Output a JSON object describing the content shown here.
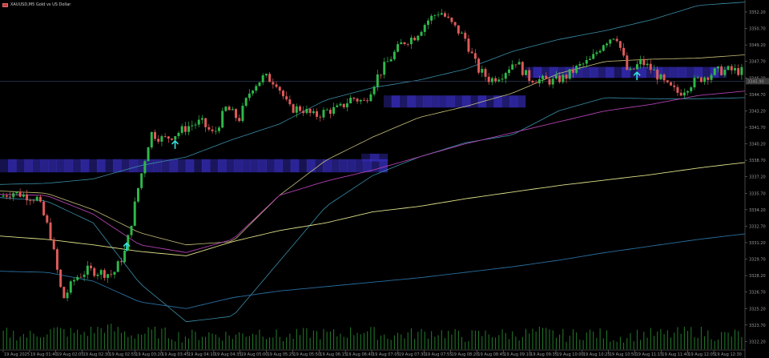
{
  "header": {
    "symbol_text": "XAUUSD,M5 Gold vs US Dollar",
    "icon": "chart-flag-icon"
  },
  "price_axis": {
    "labels": [
      "3352.20",
      "3350.70",
      "3349.20",
      "3347.70",
      "3346.20",
      "3344.70",
      "3343.20",
      "3341.70",
      "3340.20",
      "3338.70",
      "3337.20",
      "3335.70",
      "3334.20",
      "3332.70",
      "3331.20",
      "3329.70",
      "3328.20",
      "3326.70",
      "3325.20",
      "3323.70",
      "3322.20"
    ],
    "current_price": "3345.90",
    "current_price_color": "#3a3a3a"
  },
  "time_axis": {
    "labels": [
      "19 Aug 2025",
      "19 Aug 01:40",
      "19 Aug 02:05",
      "19 Aug 02:30",
      "19 Aug 02:55",
      "19 Aug 03:20",
      "19 Aug 03:45",
      "19 Aug 04:10",
      "19 Aug 04:35",
      "19 Aug 05:00",
      "19 Aug 05:25",
      "19 Aug 05:50",
      "19 Aug 06:15",
      "19 Aug 06:40",
      "19 Aug 07:05",
      "19 Aug 07:30",
      "19 Aug 07:55",
      "19 Aug 08:20",
      "19 Aug 08:45",
      "19 Aug 09:10",
      "19 Aug 09:35",
      "19 Aug 10:00",
      "19 Aug 10:25",
      "19 Aug 10:50",
      "19 Aug 11:15",
      "19 Aug 11:40",
      "19 Aug 12:05",
      "19 Aug 12:30"
    ]
  },
  "chart_data": {
    "type": "candlestick",
    "title": "",
    "ylim": [
      3321.5,
      3353.0
    ],
    "grid": false,
    "colors": {
      "bull": "#2fb84a",
      "bear": "#e05a5a",
      "volume": "#2fa83a",
      "zone": "#3a30c8",
      "upper_band": "#3a8fa8",
      "lower_band": "#3a8fa8",
      "mid_band": "#c8c27a",
      "ma_magenta": "#b040b0",
      "ma_yellow": "#e0e08a",
      "ma_teal": "#2a6fa0",
      "arrow": "#38e0e0",
      "price_line": "#2f3a5a"
    },
    "anchor_prices": [
      3335.4,
      3335.8,
      3335.5,
      3335.2,
      3332.0,
      3326.0,
      3328.0,
      3328.7,
      3328.5,
      3328.3,
      3330.5,
      3336.2,
      3341.2,
      3340.6,
      3341.1,
      3341.8,
      3342.2,
      3341.0,
      3343.5,
      3342.4,
      3345.3,
      3346.3,
      3345.8,
      3343.4,
      3343.4,
      3342.7,
      3343.2,
      3343.4,
      3344.4,
      3344.0,
      3346.3,
      3347.9,
      3349.4,
      3350.0,
      3351.4,
      3352.3,
      3351.0,
      3349.8,
      3347.0,
      3346.0,
      3346.6,
      3347.8,
      3346.2,
      3346.0,
      3345.9,
      3346.3,
      3347.2,
      3347.8,
      3349.4,
      3350.2,
      3346.5,
      3347.7,
      3346.8,
      3345.5,
      3344.8,
      3345.7,
      3346.3,
      3346.8,
      3346.9,
      3346.8
    ],
    "up_arrows_at": [
      0.17,
      0.235,
      0.855
    ],
    "volume_level": [
      0.55,
      0.4,
      0.7,
      0.5,
      0.85,
      0.45,
      0.6,
      0.35,
      0.5,
      0.4,
      0.65,
      0.3,
      0.55,
      0.45,
      0.7,
      0.4,
      0.5,
      0.6,
      0.35,
      0.5,
      0.45,
      0.6,
      0.4,
      0.55,
      0.3,
      0.5,
      0.45,
      0.65,
      0.4,
      0.5
    ],
    "bands": {
      "upper_band": [
        3336.5,
        3336.6,
        3337.0,
        3338.2,
        3339.0,
        3340.6,
        3342.0,
        3344.2,
        3345.3,
        3346.0,
        3347.0,
        3348.6,
        3349.7,
        3350.5,
        3351.5,
        3352.8,
        3353.1
      ],
      "mid_band": [
        3335.9,
        3335.7,
        3334.2,
        3332.1,
        3331.0,
        3331.3,
        3335.5,
        3338.7,
        3340.8,
        3342.6,
        3343.6,
        3344.8,
        3346.6,
        3347.7,
        3347.9,
        3348.0,
        3348.3
      ],
      "lower_band": [
        3335.3,
        3335.0,
        3333.0,
        3327.5,
        3324.0,
        3324.5,
        3329.5,
        3334.5,
        3337.3,
        3339.0,
        3340.3,
        3341.0,
        3343.2,
        3344.4,
        3344.3,
        3344.3,
        3344.4
      ],
      "ma_magenta": [
        3335.6,
        3335.5,
        3333.8,
        3331.0,
        3330.3,
        3331.5,
        3335.5,
        3336.8,
        3337.8,
        3339.0,
        3340.2,
        3341.2,
        3342.2,
        3343.2,
        3343.8,
        3344.6,
        3345.0
      ],
      "ma_yellow": [
        3331.8,
        3331.5,
        3331.0,
        3330.4,
        3330.0,
        3331.3,
        3332.3,
        3333.0,
        3334.0,
        3334.5,
        3335.2,
        3335.8,
        3336.4,
        3336.9,
        3337.4,
        3338.0,
        3338.5
      ],
      "ma_teal": [
        3328.6,
        3328.5,
        3327.7,
        3325.8,
        3325.2,
        3326.2,
        3326.8,
        3327.2,
        3327.6,
        3328.0,
        3328.5,
        3329.0,
        3329.6,
        3330.3,
        3330.9,
        3331.5,
        3332.0
      ]
    },
    "zones": [
      {
        "x_start": 0.0,
        "x_end": 0.52,
        "top": 3338.8,
        "bottom": 3337.6,
        "opacity": 0.75
      },
      {
        "x_start": 0.485,
        "x_end": 0.52,
        "top": 3339.3,
        "bottom": 3338.6,
        "opacity": 0.7
      },
      {
        "x_start": 0.515,
        "x_end": 0.705,
        "top": 3344.6,
        "bottom": 3343.5,
        "opacity": 0.8
      },
      {
        "x_start": 0.705,
        "x_end": 0.975,
        "top": 3347.2,
        "bottom": 3346.2,
        "opacity": 0.8
      }
    ]
  }
}
